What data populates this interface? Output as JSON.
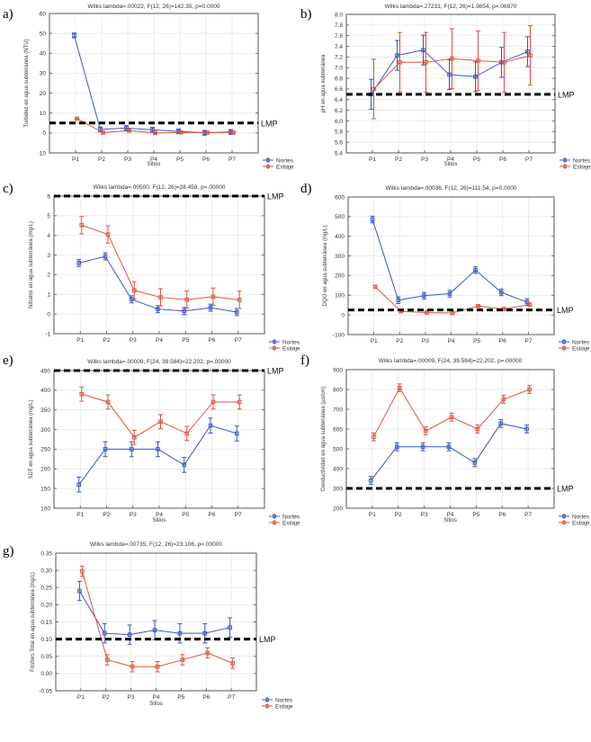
{
  "chart_data": [
    {
      "id": "a",
      "type": "line",
      "panel_label": "a)",
      "title": "Wilks lambda=.00022, F(12, 26)=142.35, p=0.0000",
      "xlabel": "Sitios",
      "ylabel": "Turbidez en agua subterránea (NTU)",
      "categories": [
        "P1",
        "P2",
        "P3",
        "P4",
        "P5",
        "P6",
        "P7"
      ],
      "ylim": [
        -10,
        60
      ],
      "yticks": [
        -10,
        0,
        10,
        20,
        30,
        40,
        50,
        60
      ],
      "ytick_labels": [
        "-10",
        "0",
        "10",
        "20",
        "30",
        "40",
        "50",
        "60"
      ],
      "grid": true,
      "legend_position": "bottom-right",
      "limit_line": {
        "label": "LMP",
        "value": 5
      },
      "series": [
        {
          "name": "Nortes",
          "color": "#3a55c8",
          "values": [
            49,
            1.8,
            2.5,
            1.6,
            0.8,
            0.1,
            0.5
          ],
          "errors": [
            1.2,
            1.2,
            1.2,
            1.2,
            1.2,
            1.2,
            1.2
          ]
        },
        {
          "name": "Estiaje",
          "color": "#e0533e",
          "values": [
            7.2,
            0.2,
            1.2,
            0.0,
            0.3,
            0.2,
            0.2
          ],
          "errors": [
            0.3,
            0.3,
            0.3,
            0.3,
            0.3,
            0.3,
            0.3
          ]
        }
      ]
    },
    {
      "id": "b",
      "type": "line",
      "panel_label": "b)",
      "title": "Wilks lambda=.27231, F(12, 26)=1.9854, p=.06970",
      "xlabel": "Sitios",
      "ylabel": "pH en agua subterránea",
      "categories": [
        "P1",
        "P2",
        "P3",
        "P4",
        "P5",
        "P6",
        "P7"
      ],
      "ylim": [
        5.4,
        8.0
      ],
      "yticks": [
        5.4,
        5.6,
        5.8,
        6.0,
        6.2,
        6.4,
        6.6,
        6.8,
        7.0,
        7.2,
        7.4,
        7.6,
        7.8,
        8.0
      ],
      "ytick_labels": [
        "5.4",
        "5.6",
        "5.8",
        "6.0",
        "6.2",
        "6.4",
        "6.6",
        "6.8",
        "7.0",
        "7.2",
        "7.4",
        "7.6",
        "7.8",
        "8.0"
      ],
      "grid": true,
      "legend_position": "bottom-right",
      "limit_line": {
        "label": "LMP",
        "value": 6.5
      },
      "series": [
        {
          "name": "Nortes",
          "color": "#3a55c8",
          "values": [
            6.5,
            7.23,
            7.33,
            6.87,
            6.83,
            7.1,
            7.3
          ],
          "errors": [
            0.28,
            0.28,
            0.28,
            0.28,
            0.28,
            0.28,
            0.28
          ]
        },
        {
          "name": "Estiaje",
          "color": "#e0533e",
          "values": [
            6.6,
            7.1,
            7.1,
            7.17,
            7.13,
            7.1,
            7.23
          ],
          "errors": [
            0.56,
            0.56,
            0.56,
            0.56,
            0.56,
            0.56,
            0.56
          ]
        }
      ]
    },
    {
      "id": "c",
      "type": "line",
      "panel_label": "c)",
      "title": "Wilks lambda=.00500, F(12, 26)=28.459, p=.00000",
      "xlabel": "",
      "ylabel": "Nitratos en agua subterránea (mg/L)",
      "categories": [
        "P1",
        "P2",
        "P3",
        "P4",
        "P5",
        "P6",
        "P7"
      ],
      "ylim": [
        -1,
        6
      ],
      "yticks": [
        -1,
        0,
        1,
        2,
        3,
        4,
        5,
        6
      ],
      "ytick_labels": [
        "-1",
        "0",
        "1",
        "2",
        "3",
        "4",
        "5",
        "6"
      ],
      "grid": true,
      "legend_position": "bottom-right",
      "limit_line": {
        "label": "LMP",
        "value": 6
      },
      "series": [
        {
          "name": "Nortes",
          "color": "#3a55c8",
          "values": [
            2.6,
            2.93,
            0.75,
            0.25,
            0.15,
            0.32,
            0.1
          ],
          "errors": [
            0.18,
            0.18,
            0.18,
            0.18,
            0.18,
            0.18,
            0.18
          ]
        },
        {
          "name": "Estiaje",
          "color": "#e0533e",
          "values": [
            4.52,
            4.05,
            1.2,
            0.85,
            0.73,
            0.88,
            0.72
          ],
          "errors": [
            0.44,
            0.44,
            0.44,
            0.44,
            0.44,
            0.44,
            0.44
          ]
        }
      ]
    },
    {
      "id": "d",
      "type": "line",
      "panel_label": "d)",
      "title": "Wilks lambda=.00036, F(12, 26)=111.54, p=0.0000",
      "xlabel": "",
      "ylabel": "DQO en agua subterránea (mg/L)",
      "categories": [
        "P1",
        "P2",
        "P3",
        "P4",
        "P5",
        "P6",
        "P7"
      ],
      "ylim": [
        -100,
        600
      ],
      "yticks": [
        -100,
        0,
        100,
        200,
        300,
        400,
        500,
        600
      ],
      "ytick_labels": [
        "-100",
        "0",
        "100",
        "200",
        "300",
        "400",
        "500",
        "600"
      ],
      "grid": true,
      "legend_position": "bottom-right",
      "limit_line": {
        "label": "LMP",
        "value": 25
      },
      "series": [
        {
          "name": "Nortes",
          "color": "#3a55c8",
          "values": [
            485,
            75,
            98,
            108,
            228,
            115,
            65
          ],
          "errors": [
            17,
            17,
            17,
            17,
            17,
            17,
            17
          ]
        },
        {
          "name": "Estiaje",
          "color": "#e0533e",
          "values": [
            143,
            18,
            12,
            10,
            45,
            30,
            53
          ],
          "errors": [
            7,
            7,
            7,
            7,
            7,
            7,
            7
          ]
        }
      ]
    },
    {
      "id": "e",
      "type": "line",
      "panel_label": "e)",
      "title": "Wilks lambda=.00009, F(24, 39.584)=22.202, p=.00000",
      "xlabel": "Sitios",
      "ylabel": "SDT en agua subterránea (mg/L)",
      "categories": [
        "P1",
        "P2",
        "P3",
        "P4",
        "P5",
        "P6",
        "P7"
      ],
      "ylim": [
        100,
        450
      ],
      "yticks": [
        100,
        150,
        200,
        250,
        300,
        350,
        400,
        450
      ],
      "ytick_labels": [
        "100",
        "150",
        "200",
        "250",
        "300",
        "350",
        "400",
        "450"
      ],
      "grid": true,
      "legend_position": "bottom-right",
      "limit_line": {
        "label": "LMP",
        "value": 450
      },
      "series": [
        {
          "name": "Nortes",
          "color": "#3a55c8",
          "values": [
            160,
            250,
            250,
            250,
            210,
            310,
            290
          ],
          "errors": [
            19,
            19,
            19,
            19,
            19,
            19,
            19
          ]
        },
        {
          "name": "Estiaje",
          "color": "#e0533e",
          "values": [
            390,
            370,
            280,
            320,
            290,
            370,
            370
          ],
          "errors": [
            18,
            18,
            18,
            18,
            18,
            18,
            18
          ]
        }
      ]
    },
    {
      "id": "f",
      "type": "line",
      "panel_label": "f)",
      "title": "Wilks lambda=.00009, F(24, 39.584)=22.202, p=.00000",
      "xlabel": "Sitios",
      "ylabel": "Conductividad en agua subterránea (µs/cm)",
      "categories": [
        "P1",
        "P2",
        "P3",
        "P4",
        "P5",
        "P6",
        "P7"
      ],
      "ylim": [
        200,
        900
      ],
      "yticks": [
        200,
        300,
        400,
        500,
        600,
        700,
        800,
        900
      ],
      "ytick_labels": [
        "200",
        "300",
        "400",
        "500",
        "600",
        "700",
        "800",
        "900"
      ],
      "grid": true,
      "legend_position": "bottom-right",
      "limit_line": {
        "label": "LMP",
        "value": 300
      },
      "series": [
        {
          "name": "Nortes",
          "color": "#3a55c8",
          "values": [
            340,
            510,
            510,
            510,
            430,
            628,
            600
          ],
          "errors": [
            20,
            20,
            20,
            20,
            20,
            20,
            20
          ]
        },
        {
          "name": "Estiaje",
          "color": "#e0533e",
          "values": [
            560,
            808,
            590,
            660,
            600,
            750,
            800
          ],
          "errors": [
            20,
            20,
            20,
            20,
            20,
            20,
            20
          ]
        }
      ]
    },
    {
      "id": "g",
      "type": "line",
      "panel_label": "g)",
      "title": "Wilks lambda=.00735, F(12, 26)=23.106, p=.00000",
      "xlabel": "Sitios",
      "ylabel": "Fósforo Total en agua subterránea (mg/L)",
      "categories": [
        "P1",
        "P2",
        "P3",
        "P4",
        "P5",
        "P6",
        "P7"
      ],
      "ylim": [
        -0.05,
        0.35
      ],
      "yticks": [
        -0.05,
        0.0,
        0.05,
        0.1,
        0.15,
        0.2,
        0.25,
        0.3,
        0.35
      ],
      "ytick_labels": [
        "-0.05",
        "0.00",
        "0.05",
        "0.10",
        "0.15",
        "0.20",
        "0.25",
        "0.30",
        "0.35"
      ],
      "grid": true,
      "legend_position": "bottom-right",
      "limit_line": {
        "label": "LMP",
        "value": 0.1
      },
      "series": [
        {
          "name": "Nortes",
          "color": "#3a55c8",
          "values": [
            0.24,
            0.117,
            0.113,
            0.126,
            0.117,
            0.117,
            0.134
          ],
          "errors": [
            0.028,
            0.028,
            0.028,
            0.028,
            0.028,
            0.028,
            0.028
          ]
        },
        {
          "name": "Estiaje",
          "color": "#e0533e",
          "values": [
            0.297,
            0.04,
            0.02,
            0.02,
            0.04,
            0.06,
            0.03
          ],
          "errors": [
            0.015,
            0.015,
            0.015,
            0.015,
            0.015,
            0.015,
            0.015
          ]
        }
      ]
    }
  ]
}
